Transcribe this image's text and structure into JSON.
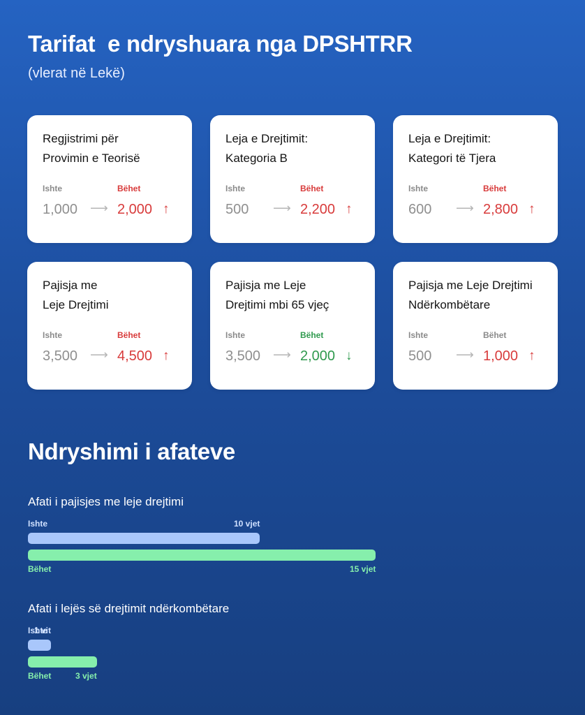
{
  "header": {
    "title": "Tarifat  e ndryshuara nga DPSHTRR",
    "subtitle": "(vlerat në Lekë)"
  },
  "labels": {
    "old": "Ishte",
    "new": "Bëhet"
  },
  "colors": {
    "increase": "#d83b3b",
    "decrease": "#2f9a4e",
    "neutral": "#8a8a8a"
  },
  "cards": [
    {
      "title": "Regjistrimi për\nProvimin e Teorisë",
      "old": "1,000",
      "new": "2,000",
      "trend": "up"
    },
    {
      "title": "Leja e Drejtimit:\nKategoria B",
      "old": "500",
      "new": "2,200",
      "trend": "up"
    },
    {
      "title": "Leja e Drejtimit:\nKategori të Tjera",
      "old": "600",
      "new": "2,800",
      "trend": "up"
    },
    {
      "title": "Pajisja me\nLeje Drejtimi",
      "old": "3,500",
      "new": "4,500",
      "trend": "up"
    },
    {
      "title": "Pajisja me Leje\nDrejtimi mbi 65 vjeç",
      "old": "3,500",
      "new": "2,000",
      "trend": "down"
    },
    {
      "title": "Pajisja me Leje Drejtimi\nNdërkombëtare",
      "old": "500",
      "new": "1,000",
      "trend": "up"
    }
  ],
  "arrow_glyph": "⟶",
  "trend_glyphs": {
    "up": "↑",
    "down": "↓"
  },
  "section": {
    "title": "Ndryshimi i afateve",
    "items": [
      {
        "label": "Afati i pajisjes me leje drejtimi",
        "old_label": "10 vjet",
        "old_value": 10,
        "new_label": "15 vjet",
        "new_value": 15
      },
      {
        "label": "Afati i lejës së drejtimit ndërkombëtare",
        "old_label": "1 vit",
        "old_value": 1,
        "new_label": "3 vjet",
        "new_value": 3
      }
    ]
  }
}
